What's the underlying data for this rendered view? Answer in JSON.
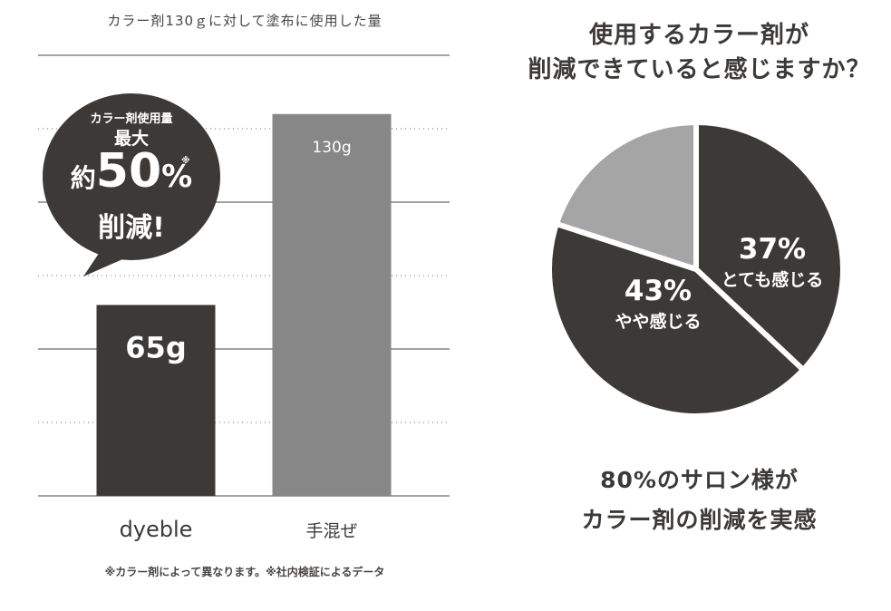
{
  "chart_data": [
    {
      "type": "bar",
      "title": "カラー剤130ｇに対して塗布に使用した量",
      "categories": [
        "dyeble",
        "手混ぜ"
      ],
      "values": [
        65,
        130
      ],
      "value_labels": [
        "65g",
        "130g"
      ],
      "ylim": [
        0,
        150
      ],
      "colors": [
        "#3d3937",
        "#878787"
      ]
    },
    {
      "type": "pie",
      "title": "使用するカラー剤が 削減できていると感じますか？",
      "labels": [
        "とても感じる",
        "やや感じる",
        ""
      ],
      "values": [
        37,
        43,
        20
      ],
      "value_labels": [
        "37%",
        "43%",
        ""
      ],
      "colors": [
        "#3d3937",
        "#3d3937",
        "#a5a5a5"
      ]
    }
  ],
  "callout": {
    "line1": "カラー剤使用量",
    "line2": "最大",
    "prefix": "約",
    "number": "50",
    "percent": "%",
    "asterisk": "※",
    "line4": "削減!"
  },
  "pie_title_line1": "使用するカラー剤が",
  "pie_title_line2": "削減できていると感じますか？",
  "summary_line1": "80%のサロン様が",
  "summary_line2": "カラー剤の削減を実感",
  "footnote": "※カラー剤によって異なります。※社内検証によるデータ"
}
